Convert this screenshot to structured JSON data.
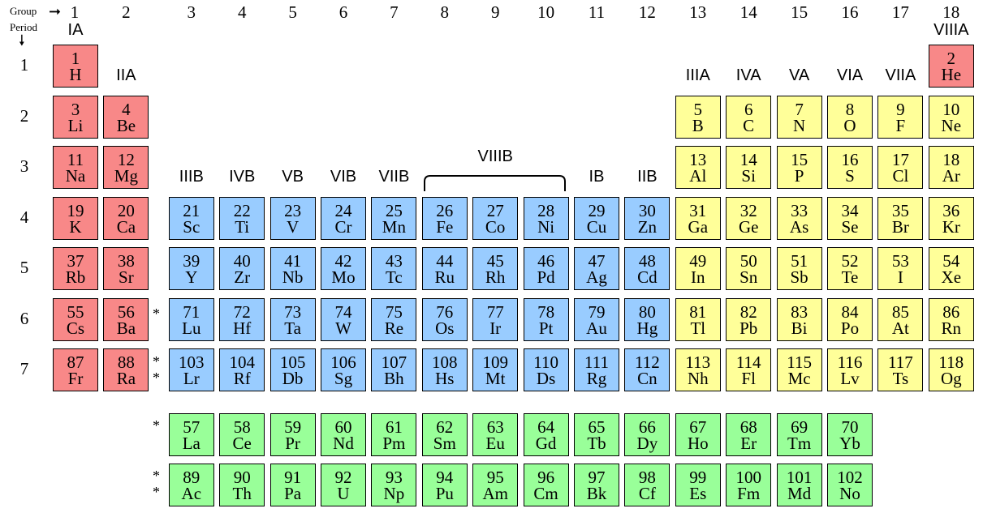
{
  "header": {
    "group_label": "Group",
    "period_label": "Period"
  },
  "colors": {
    "s_block": "#f88888",
    "d_block": "#99ccff",
    "p_block": "#ffff99",
    "f_block": "#99ff99",
    "border": "#000000"
  },
  "group_numbers": [
    "1",
    "2",
    "3",
    "4",
    "5",
    "6",
    "7",
    "8",
    "9",
    "10",
    "11",
    "12",
    "13",
    "14",
    "15",
    "16",
    "17",
    "18"
  ],
  "group_roman": [
    {
      "col": 1,
      "text": "IA",
      "row": "top"
    },
    {
      "col": 2,
      "text": "IIA",
      "row": "p1"
    },
    {
      "col": 3,
      "text": "IIIB",
      "row": "p3"
    },
    {
      "col": 4,
      "text": "IVB",
      "row": "p3"
    },
    {
      "col": 5,
      "text": "VB",
      "row": "p3"
    },
    {
      "col": 6,
      "text": "VIB",
      "row": "p3"
    },
    {
      "col": 7,
      "text": "VIIB",
      "row": "p3"
    },
    {
      "col": 9,
      "text": "VIIIB",
      "row": "bracket"
    },
    {
      "col": 11,
      "text": "IB",
      "row": "p3"
    },
    {
      "col": 12,
      "text": "IIB",
      "row": "p3"
    },
    {
      "col": 13,
      "text": "IIIA",
      "row": "p1"
    },
    {
      "col": 14,
      "text": "IVA",
      "row": "p1"
    },
    {
      "col": 15,
      "text": "VA",
      "row": "p1"
    },
    {
      "col": 16,
      "text": "VIA",
      "row": "p1"
    },
    {
      "col": 17,
      "text": "VIIA",
      "row": "p1"
    },
    {
      "col": 18,
      "text": "VIIIA",
      "row": "top"
    }
  ],
  "periods": [
    "1",
    "2",
    "3",
    "4",
    "5",
    "6",
    "7"
  ],
  "markers": {
    "lanthanide": "*",
    "actinide": "**"
  },
  "elements": [
    {
      "n": "1",
      "s": "H",
      "c": 1,
      "r": 1,
      "b": "s"
    },
    {
      "n": "2",
      "s": "He",
      "c": 18,
      "r": 1,
      "b": "s"
    },
    {
      "n": "3",
      "s": "Li",
      "c": 1,
      "r": 2,
      "b": "s"
    },
    {
      "n": "4",
      "s": "Be",
      "c": 2,
      "r": 2,
      "b": "s"
    },
    {
      "n": "5",
      "s": "B",
      "c": 13,
      "r": 2,
      "b": "p"
    },
    {
      "n": "6",
      "s": "C",
      "c": 14,
      "r": 2,
      "b": "p"
    },
    {
      "n": "7",
      "s": "N",
      "c": 15,
      "r": 2,
      "b": "p"
    },
    {
      "n": "8",
      "s": "O",
      "c": 16,
      "r": 2,
      "b": "p"
    },
    {
      "n": "9",
      "s": "F",
      "c": 17,
      "r": 2,
      "b": "p"
    },
    {
      "n": "10",
      "s": "Ne",
      "c": 18,
      "r": 2,
      "b": "p"
    },
    {
      "n": "11",
      "s": "Na",
      "c": 1,
      "r": 3,
      "b": "s"
    },
    {
      "n": "12",
      "s": "Mg",
      "c": 2,
      "r": 3,
      "b": "s"
    },
    {
      "n": "13",
      "s": "Al",
      "c": 13,
      "r": 3,
      "b": "p"
    },
    {
      "n": "14",
      "s": "Si",
      "c": 14,
      "r": 3,
      "b": "p"
    },
    {
      "n": "15",
      "s": "P",
      "c": 15,
      "r": 3,
      "b": "p"
    },
    {
      "n": "16",
      "s": "S",
      "c": 16,
      "r": 3,
      "b": "p"
    },
    {
      "n": "17",
      "s": "Cl",
      "c": 17,
      "r": 3,
      "b": "p"
    },
    {
      "n": "18",
      "s": "Ar",
      "c": 18,
      "r": 3,
      "b": "p"
    },
    {
      "n": "19",
      "s": "K",
      "c": 1,
      "r": 4,
      "b": "s"
    },
    {
      "n": "20",
      "s": "Ca",
      "c": 2,
      "r": 4,
      "b": "s"
    },
    {
      "n": "21",
      "s": "Sc",
      "c": 3,
      "r": 4,
      "b": "d"
    },
    {
      "n": "22",
      "s": "Ti",
      "c": 4,
      "r": 4,
      "b": "d"
    },
    {
      "n": "23",
      "s": "V",
      "c": 5,
      "r": 4,
      "b": "d"
    },
    {
      "n": "24",
      "s": "Cr",
      "c": 6,
      "r": 4,
      "b": "d"
    },
    {
      "n": "25",
      "s": "Mn",
      "c": 7,
      "r": 4,
      "b": "d"
    },
    {
      "n": "26",
      "s": "Fe",
      "c": 8,
      "r": 4,
      "b": "d"
    },
    {
      "n": "27",
      "s": "Co",
      "c": 9,
      "r": 4,
      "b": "d"
    },
    {
      "n": "28",
      "s": "Ni",
      "c": 10,
      "r": 4,
      "b": "d"
    },
    {
      "n": "29",
      "s": "Cu",
      "c": 11,
      "r": 4,
      "b": "d"
    },
    {
      "n": "30",
      "s": "Zn",
      "c": 12,
      "r": 4,
      "b": "d"
    },
    {
      "n": "31",
      "s": "Ga",
      "c": 13,
      "r": 4,
      "b": "p"
    },
    {
      "n": "32",
      "s": "Ge",
      "c": 14,
      "r": 4,
      "b": "p"
    },
    {
      "n": "33",
      "s": "As",
      "c": 15,
      "r": 4,
      "b": "p"
    },
    {
      "n": "34",
      "s": "Se",
      "c": 16,
      "r": 4,
      "b": "p"
    },
    {
      "n": "35",
      "s": "Br",
      "c": 17,
      "r": 4,
      "b": "p"
    },
    {
      "n": "36",
      "s": "Kr",
      "c": 18,
      "r": 4,
      "b": "p"
    },
    {
      "n": "37",
      "s": "Rb",
      "c": 1,
      "r": 5,
      "b": "s"
    },
    {
      "n": "38",
      "s": "Sr",
      "c": 2,
      "r": 5,
      "b": "s"
    },
    {
      "n": "39",
      "s": "Y",
      "c": 3,
      "r": 5,
      "b": "d"
    },
    {
      "n": "40",
      "s": "Zr",
      "c": 4,
      "r": 5,
      "b": "d"
    },
    {
      "n": "41",
      "s": "Nb",
      "c": 5,
      "r": 5,
      "b": "d"
    },
    {
      "n": "42",
      "s": "Mo",
      "c": 6,
      "r": 5,
      "b": "d"
    },
    {
      "n": "43",
      "s": "Tc",
      "c": 7,
      "r": 5,
      "b": "d"
    },
    {
      "n": "44",
      "s": "Ru",
      "c": 8,
      "r": 5,
      "b": "d"
    },
    {
      "n": "45",
      "s": "Rh",
      "c": 9,
      "r": 5,
      "b": "d"
    },
    {
      "n": "46",
      "s": "Pd",
      "c": 10,
      "r": 5,
      "b": "d"
    },
    {
      "n": "47",
      "s": "Ag",
      "c": 11,
      "r": 5,
      "b": "d"
    },
    {
      "n": "48",
      "s": "Cd",
      "c": 12,
      "r": 5,
      "b": "d"
    },
    {
      "n": "49",
      "s": "In",
      "c": 13,
      "r": 5,
      "b": "p"
    },
    {
      "n": "50",
      "s": "Sn",
      "c": 14,
      "r": 5,
      "b": "p"
    },
    {
      "n": "51",
      "s": "Sb",
      "c": 15,
      "r": 5,
      "b": "p"
    },
    {
      "n": "52",
      "s": "Te",
      "c": 16,
      "r": 5,
      "b": "p"
    },
    {
      "n": "53",
      "s": "I",
      "c": 17,
      "r": 5,
      "b": "p"
    },
    {
      "n": "54",
      "s": "Xe",
      "c": 18,
      "r": 5,
      "b": "p"
    },
    {
      "n": "55",
      "s": "Cs",
      "c": 1,
      "r": 6,
      "b": "s"
    },
    {
      "n": "56",
      "s": "Ba",
      "c": 2,
      "r": 6,
      "b": "s"
    },
    {
      "n": "71",
      "s": "Lu",
      "c": 3,
      "r": 6,
      "b": "d"
    },
    {
      "n": "72",
      "s": "Hf",
      "c": 4,
      "r": 6,
      "b": "d"
    },
    {
      "n": "73",
      "s": "Ta",
      "c": 5,
      "r": 6,
      "b": "d"
    },
    {
      "n": "74",
      "s": "W",
      "c": 6,
      "r": 6,
      "b": "d"
    },
    {
      "n": "75",
      "s": "Re",
      "c": 7,
      "r": 6,
      "b": "d"
    },
    {
      "n": "76",
      "s": "Os",
      "c": 8,
      "r": 6,
      "b": "d"
    },
    {
      "n": "77",
      "s": "Ir",
      "c": 9,
      "r": 6,
      "b": "d"
    },
    {
      "n": "78",
      "s": "Pt",
      "c": 10,
      "r": 6,
      "b": "d"
    },
    {
      "n": "79",
      "s": "Au",
      "c": 11,
      "r": 6,
      "b": "d"
    },
    {
      "n": "80",
      "s": "Hg",
      "c": 12,
      "r": 6,
      "b": "d"
    },
    {
      "n": "81",
      "s": "Tl",
      "c": 13,
      "r": 6,
      "b": "p"
    },
    {
      "n": "82",
      "s": "Pb",
      "c": 14,
      "r": 6,
      "b": "p"
    },
    {
      "n": "83",
      "s": "Bi",
      "c": 15,
      "r": 6,
      "b": "p"
    },
    {
      "n": "84",
      "s": "Po",
      "c": 16,
      "r": 6,
      "b": "p"
    },
    {
      "n": "85",
      "s": "At",
      "c": 17,
      "r": 6,
      "b": "p"
    },
    {
      "n": "86",
      "s": "Rn",
      "c": 18,
      "r": 6,
      "b": "p"
    },
    {
      "n": "87",
      "s": "Fr",
      "c": 1,
      "r": 7,
      "b": "s"
    },
    {
      "n": "88",
      "s": "Ra",
      "c": 2,
      "r": 7,
      "b": "s"
    },
    {
      "n": "103",
      "s": "Lr",
      "c": 3,
      "r": 7,
      "b": "d"
    },
    {
      "n": "104",
      "s": "Rf",
      "c": 4,
      "r": 7,
      "b": "d"
    },
    {
      "n": "105",
      "s": "Db",
      "c": 5,
      "r": 7,
      "b": "d"
    },
    {
      "n": "106",
      "s": "Sg",
      "c": 6,
      "r": 7,
      "b": "d"
    },
    {
      "n": "107",
      "s": "Bh",
      "c": 7,
      "r": 7,
      "b": "d"
    },
    {
      "n": "108",
      "s": "Hs",
      "c": 8,
      "r": 7,
      "b": "d"
    },
    {
      "n": "109",
      "s": "Mt",
      "c": 9,
      "r": 7,
      "b": "d"
    },
    {
      "n": "110",
      "s": "Ds",
      "c": 10,
      "r": 7,
      "b": "d"
    },
    {
      "n": "111",
      "s": "Rg",
      "c": 11,
      "r": 7,
      "b": "d"
    },
    {
      "n": "112",
      "s": "Cn",
      "c": 12,
      "r": 7,
      "b": "d"
    },
    {
      "n": "113",
      "s": "Nh",
      "c": 13,
      "r": 7,
      "b": "p"
    },
    {
      "n": "114",
      "s": "Fl",
      "c": 14,
      "r": 7,
      "b": "p"
    },
    {
      "n": "115",
      "s": "Mc",
      "c": 15,
      "r": 7,
      "b": "p"
    },
    {
      "n": "116",
      "s": "Lv",
      "c": 16,
      "r": 7,
      "b": "p"
    },
    {
      "n": "117",
      "s": "Ts",
      "c": 17,
      "r": 7,
      "b": "p"
    },
    {
      "n": "118",
      "s": "Og",
      "c": 18,
      "r": 7,
      "b": "p"
    },
    {
      "n": "57",
      "s": "La",
      "c": 3,
      "r": 8,
      "b": "f"
    },
    {
      "n": "58",
      "s": "Ce",
      "c": 4,
      "r": 8,
      "b": "f"
    },
    {
      "n": "59",
      "s": "Pr",
      "c": 5,
      "r": 8,
      "b": "f"
    },
    {
      "n": "60",
      "s": "Nd",
      "c": 6,
      "r": 8,
      "b": "f"
    },
    {
      "n": "61",
      "s": "Pm",
      "c": 7,
      "r": 8,
      "b": "f"
    },
    {
      "n": "62",
      "s": "Sm",
      "c": 8,
      "r": 8,
      "b": "f"
    },
    {
      "n": "63",
      "s": "Eu",
      "c": 9,
      "r": 8,
      "b": "f"
    },
    {
      "n": "64",
      "s": "Gd",
      "c": 10,
      "r": 8,
      "b": "f"
    },
    {
      "n": "65",
      "s": "Tb",
      "c": 11,
      "r": 8,
      "b": "f"
    },
    {
      "n": "66",
      "s": "Dy",
      "c": 12,
      "r": 8,
      "b": "f"
    },
    {
      "n": "67",
      "s": "Ho",
      "c": 13,
      "r": 8,
      "b": "f"
    },
    {
      "n": "68",
      "s": "Er",
      "c": 14,
      "r": 8,
      "b": "f"
    },
    {
      "n": "69",
      "s": "Tm",
      "c": 15,
      "r": 8,
      "b": "f"
    },
    {
      "n": "70",
      "s": "Yb",
      "c": 16,
      "r": 8,
      "b": "f"
    },
    {
      "n": "89",
      "s": "Ac",
      "c": 3,
      "r": 9,
      "b": "f"
    },
    {
      "n": "90",
      "s": "Th",
      "c": 4,
      "r": 9,
      "b": "f"
    },
    {
      "n": "91",
      "s": "Pa",
      "c": 5,
      "r": 9,
      "b": "f"
    },
    {
      "n": "92",
      "s": "U",
      "c": 6,
      "r": 9,
      "b": "f"
    },
    {
      "n": "93",
      "s": "Np",
      "c": 7,
      "r": 9,
      "b": "f"
    },
    {
      "n": "94",
      "s": "Pu",
      "c": 8,
      "r": 9,
      "b": "f"
    },
    {
      "n": "95",
      "s": "Am",
      "c": 9,
      "r": 9,
      "b": "f"
    },
    {
      "n": "96",
      "s": "Cm",
      "c": 10,
      "r": 9,
      "b": "f"
    },
    {
      "n": "97",
      "s": "Bk",
      "c": 11,
      "r": 9,
      "b": "f"
    },
    {
      "n": "98",
      "s": "Cf",
      "c": 12,
      "r": 9,
      "b": "f"
    },
    {
      "n": "99",
      "s": "Es",
      "c": 13,
      "r": 9,
      "b": "f"
    },
    {
      "n": "100",
      "s": "Fm",
      "c": 14,
      "r": 9,
      "b": "f"
    },
    {
      "n": "101",
      "s": "Md",
      "c": 15,
      "r": 9,
      "b": "f"
    },
    {
      "n": "102",
      "s": "No",
      "c": 16,
      "r": 9,
      "b": "f"
    }
  ]
}
